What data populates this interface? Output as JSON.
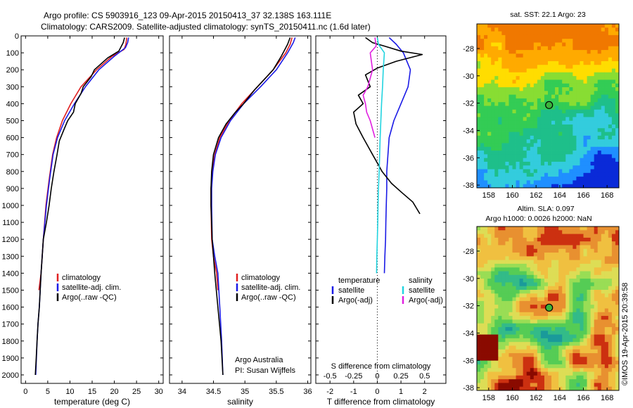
{
  "header": {
    "line1": "Argo profile: CS 5903916_123 09-Apr-2015 20150413_37 32.138S 163.111E",
    "line2": "Climatology: CARS2009. Satellite-adjusted climatology: synTS_20150411.nc (1.6d later)"
  },
  "credit": {
    "org": "Argo Australia",
    "pi": "PI: Susan Wijffels",
    "stamp": "©IMOS 19-Apr-2015 20:39:58"
  },
  "colors": {
    "climatology": "#e02020",
    "satellite": "#1a1ae6",
    "argo": "#000000",
    "sal_satellite": "#22d4e0",
    "sal_argo": "#e020e0"
  },
  "chart_data": [
    {
      "type": "line",
      "id": "temperature",
      "xlabel": "temperature (deg C)",
      "xlim": [
        -1,
        31
      ],
      "ylim": [
        0,
        2050
      ],
      "xticks": [
        0,
        5,
        10,
        15,
        20,
        25,
        30
      ],
      "yticks": [
        0,
        100,
        200,
        300,
        400,
        500,
        600,
        700,
        800,
        900,
        1000,
        1100,
        1200,
        1300,
        1400,
        1500,
        1600,
        1700,
        1800,
        1900,
        2000
      ],
      "legend": [
        "climatology",
        "satellite-adj. clim.",
        "Argo(..raw -QC)"
      ],
      "series": [
        {
          "name": "climatology",
          "color": "#e02020",
          "x": [
            22.8,
            22.6,
            22.2,
            19.5,
            16.0,
            12.5,
            10.2,
            8.3,
            7.0,
            6.1,
            5.3,
            4.6,
            4.0,
            3.5,
            3.0
          ],
          "y": [
            10,
            50,
            80,
            120,
            200,
            300,
            400,
            500,
            600,
            700,
            850,
            1000,
            1200,
            1400,
            1500
          ]
        },
        {
          "name": "satellite-adj. clim.",
          "color": "#1a1ae6",
          "x": [
            23.2,
            23.0,
            22.5,
            20.0,
            16.5,
            13.5,
            11.0,
            8.8,
            7.2,
            6.2,
            5.4,
            4.7,
            4.0,
            3.5,
            3.1,
            2.8,
            2.6,
            2.45,
            2.3
          ],
          "y": [
            10,
            40,
            70,
            120,
            200,
            300,
            400,
            500,
            600,
            700,
            850,
            1000,
            1200,
            1400,
            1600,
            1700,
            1800,
            1900,
            2000
          ]
        },
        {
          "name": "Argo(..raw -QC)",
          "color": "#000000",
          "x": [
            22.3,
            22.0,
            21.0,
            18.5,
            15.5,
            14.8,
            13.0,
            12.5,
            11.2,
            10.8,
            9.5,
            8.7,
            7.6,
            7.1,
            6.4,
            5.8,
            5.3,
            4.7,
            4.0,
            3.5,
            3.1,
            2.8,
            2.6,
            2.4,
            2.2
          ],
          "y": [
            10,
            40,
            90,
            130,
            200,
            240,
            300,
            340,
            400,
            450,
            500,
            550,
            620,
            700,
            800,
            900,
            1000,
            1100,
            1200,
            1400,
            1600,
            1700,
            1800,
            1900,
            2000
          ]
        }
      ]
    },
    {
      "type": "line",
      "id": "salinity",
      "xlabel": "salinity",
      "xlim": [
        33.8,
        36.05
      ],
      "ylim": [
        0,
        2050
      ],
      "xticks": [
        34,
        34.5,
        35,
        35.5,
        36
      ],
      "legend": [
        "climatology",
        "satellite-adj. clim.",
        "Argo(..raw -QC)"
      ],
      "series": [
        {
          "name": "climatology",
          "color": "#e02020",
          "x": [
            35.75,
            35.72,
            35.65,
            35.45,
            35.2,
            34.95,
            34.75,
            34.6,
            34.52,
            34.48,
            34.46,
            34.46,
            34.47,
            34.5,
            34.55,
            34.57
          ],
          "y": [
            10,
            50,
            100,
            200,
            300,
            400,
            500,
            600,
            700,
            800,
            900,
            1000,
            1200,
            1300,
            1400,
            1500
          ]
        },
        {
          "name": "satellite-adj. clim.",
          "color": "#1a1ae6",
          "x": [
            35.8,
            35.77,
            35.68,
            35.5,
            35.25,
            34.98,
            34.77,
            34.62,
            34.53,
            34.49,
            34.47,
            34.47,
            34.48,
            34.52,
            34.57,
            34.6,
            34.63,
            34.65
          ],
          "y": [
            10,
            40,
            100,
            200,
            300,
            400,
            500,
            600,
            700,
            800,
            900,
            1000,
            1200,
            1300,
            1400,
            1600,
            1800,
            2000
          ]
        },
        {
          "name": "Argo(..raw -QC)",
          "color": "#000000",
          "x": [
            35.72,
            35.68,
            35.58,
            35.45,
            35.3,
            35.15,
            34.98,
            34.85,
            34.7,
            34.58,
            34.5,
            34.47,
            34.46,
            34.46,
            34.48,
            34.52,
            34.57,
            34.62,
            34.65
          ],
          "y": [
            10,
            50,
            120,
            200,
            260,
            320,
            400,
            450,
            520,
            600,
            700,
            800,
            900,
            1000,
            1200,
            1400,
            1600,
            1800,
            2000
          ]
        }
      ]
    },
    {
      "type": "line",
      "id": "difference",
      "xlabel_top": "S difference from climatology",
      "xlabel": "T difference from climatology",
      "xlim": [
        -2.6,
        2.9
      ],
      "ylim": [
        0,
        2050
      ],
      "xticks": [
        -2,
        -1,
        0,
        1,
        2
      ],
      "sticks": [
        "-0.5",
        "-0.25",
        "0",
        "0.25",
        "0.5"
      ],
      "legend_headers": [
        "temperature",
        "salinity"
      ],
      "legend": [
        "satellite",
        "Argo(-adj)",
        "satellite",
        "Argo(-adj)"
      ],
      "series": [
        {
          "name": "satellite",
          "color": "#1a1ae6",
          "x": [
            0.5,
            0.8,
            1.1,
            1.4,
            1.3,
            1.0,
            0.7,
            0.5,
            0.45,
            0.4,
            0.4,
            0.38,
            0.36,
            0.35,
            0.32,
            0.3
          ],
          "y": [
            10,
            50,
            100,
            200,
            300,
            400,
            500,
            600,
            700,
            800,
            900,
            1000,
            1100,
            1200,
            1300,
            1400
          ]
        },
        {
          "name": "Argo(-adj)",
          "color": "#000000",
          "x": [
            -0.5,
            -0.2,
            0.3,
            1.0,
            1.9,
            0.8,
            0.0,
            -0.5,
            -0.3,
            -0.8,
            -0.6,
            -1.0,
            -0.9,
            -0.6,
            -0.4,
            -0.2,
            0.0,
            0.2,
            0.6,
            1.0,
            1.5,
            1.8
          ],
          "y": [
            10,
            40,
            60,
            90,
            110,
            150,
            190,
            230,
            300,
            350,
            400,
            450,
            520,
            600,
            650,
            700,
            750,
            800,
            870,
            920,
            980,
            1050
          ]
        },
        {
          "name": "satellite (salinity)",
          "color": "#22d4e0",
          "x": [
            0.0,
            0.05,
            0.3,
            0.25,
            0.22,
            0.18,
            0.15,
            0.12,
            0.1,
            0.08,
            0.05,
            0.03,
            0.02,
            0.0,
            -0.02,
            -0.03
          ],
          "y": [
            10,
            50,
            100,
            200,
            300,
            400,
            500,
            600,
            700,
            800,
            900,
            1000,
            1100,
            1200,
            1300,
            1400
          ]
        },
        {
          "name": "Argo(-adj) (salinity)",
          "color": "#e020e0",
          "x": [
            -0.1,
            -0.05,
            -0.3,
            -0.2,
            -0.4,
            -0.6,
            -0.5,
            -0.45,
            -0.3,
            -0.2,
            -0.1
          ],
          "y": [
            10,
            60,
            100,
            200,
            300,
            350,
            400,
            450,
            500,
            550,
            600
          ]
        }
      ]
    },
    {
      "type": "heatmap",
      "id": "sst-map",
      "title": "sat. SST: 22.1  Argo: 23",
      "xticks": [
        "158",
        "160",
        "162",
        "164",
        "166",
        "168"
      ],
      "yticks": [
        "-28",
        "-30",
        "-32",
        "-34",
        "-36",
        "-38"
      ],
      "xlim": [
        157,
        169
      ],
      "ylim": [
        -38.2,
        -26.2
      ],
      "argo_position": [
        163.1,
        -32.14
      ],
      "colorscale": [
        "#0a2ad8",
        "#1f8fff",
        "#33ccdd",
        "#1ebf8a",
        "#33cc55",
        "#88dd33",
        "#ffdd00",
        "#ffaa00",
        "#f07800"
      ]
    },
    {
      "type": "heatmap",
      "id": "sla-map",
      "title": "Altim. SLA: 0.097",
      "subtitle": "Argo h1000: 0.0026  h2000: NaN",
      "xticks": [
        "158",
        "160",
        "162",
        "164",
        "166",
        "168"
      ],
      "yticks": [
        "-28",
        "-30",
        "-32",
        "-34",
        "-36",
        "-38"
      ],
      "xlim": [
        157,
        169
      ],
      "ylim": [
        -38.2,
        -26.2
      ],
      "argo_position": [
        163.1,
        -32.14
      ],
      "colorscale": [
        "#1a9a9a",
        "#33bb88",
        "#55cc55",
        "#99dd55",
        "#dddd55",
        "#f0c040",
        "#e89030",
        "#cc3010",
        "#8a0a00"
      ]
    }
  ]
}
